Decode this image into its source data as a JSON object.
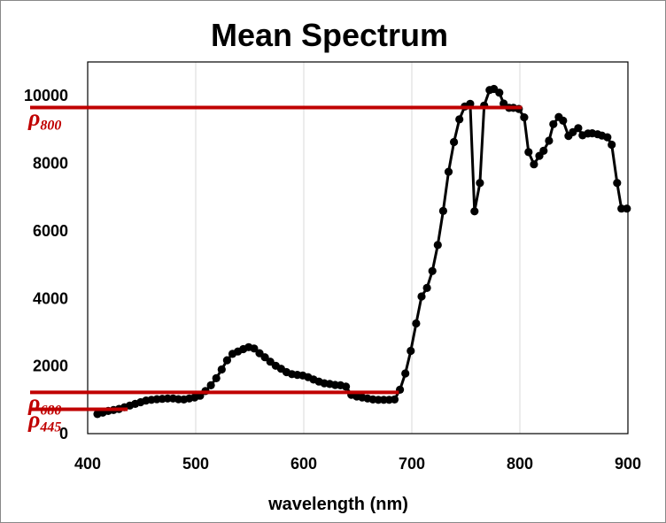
{
  "chart_data": {
    "type": "line",
    "title": "Mean Spectrum",
    "xlabel": "wavelength (nm)",
    "ylabel": "",
    "xlim": [
      400,
      900
    ],
    "ylim": [
      0,
      11000
    ],
    "xticks": [
      400,
      500,
      600,
      700,
      800,
      900
    ],
    "yticks": [
      0,
      2000,
      4000,
      6000,
      8000,
      10000
    ],
    "grid": true,
    "legend": "none",
    "line_color": "#000000",
    "marker_color": "#000000",
    "reference_color": "#c00000",
    "series": [
      {
        "x": [
          409,
          414,
          419,
          424,
          429,
          434,
          439,
          444,
          449,
          454,
          459,
          464,
          469,
          474,
          479,
          484,
          489,
          494,
          499,
          504,
          509,
          514,
          519,
          524,
          529,
          534,
          539,
          544,
          549,
          554,
          559,
          564,
          569,
          574,
          579,
          584,
          589,
          594,
          599,
          604,
          609,
          614,
          619,
          624,
          629,
          634,
          639,
          644,
          649,
          654,
          659,
          664,
          669,
          674,
          679,
          684,
          689,
          694,
          699,
          704,
          709,
          714,
          719,
          724,
          729,
          734,
          739,
          744,
          749,
          754,
          758,
          763,
          767,
          772,
          776,
          781,
          785,
          790,
          794,
          799,
          804,
          808,
          813,
          818,
          822,
          827,
          831,
          836,
          840,
          845,
          849,
          854,
          858,
          863,
          867,
          872,
          876,
          881,
          885,
          890,
          894,
          899
        ],
        "y": [
          580,
          620,
          670,
          700,
          730,
          780,
          830,
          880,
          930,
          980,
          1000,
          1020,
          1030,
          1040,
          1040,
          1020,
          1010,
          1040,
          1070,
          1120,
          1260,
          1430,
          1640,
          1900,
          2170,
          2360,
          2430,
          2500,
          2560,
          2520,
          2380,
          2260,
          2130,
          2010,
          1920,
          1820,
          1760,
          1740,
          1720,
          1670,
          1600,
          1540,
          1490,
          1470,
          1440,
          1430,
          1390,
          1150,
          1100,
          1070,
          1040,
          1010,
          1000,
          1000,
          1000,
          1010,
          1300,
          1780,
          2450,
          3260,
          4060,
          4310,
          4810,
          5580,
          6590,
          7750,
          8630,
          9300,
          9680,
          9760,
          6580,
          7420,
          9710,
          10170,
          10200,
          10090,
          9770,
          9640,
          9640,
          9610,
          9360,
          8330,
          7970,
          8220,
          8370,
          8670,
          9160,
          9370,
          9260,
          8810,
          8920,
          9040,
          8830,
          8880,
          8890,
          8860,
          8820,
          8770,
          8550,
          7420,
          6660,
          6660
        ]
      }
    ],
    "reference_lines": [
      {
        "label": "ρ",
        "subscript": "800",
        "y": 9650
      },
      {
        "label": "ρ",
        "subscript": "680",
        "y": 1220
      },
      {
        "label": "ρ",
        "subscript": "445",
        "y": 720
      }
    ]
  }
}
